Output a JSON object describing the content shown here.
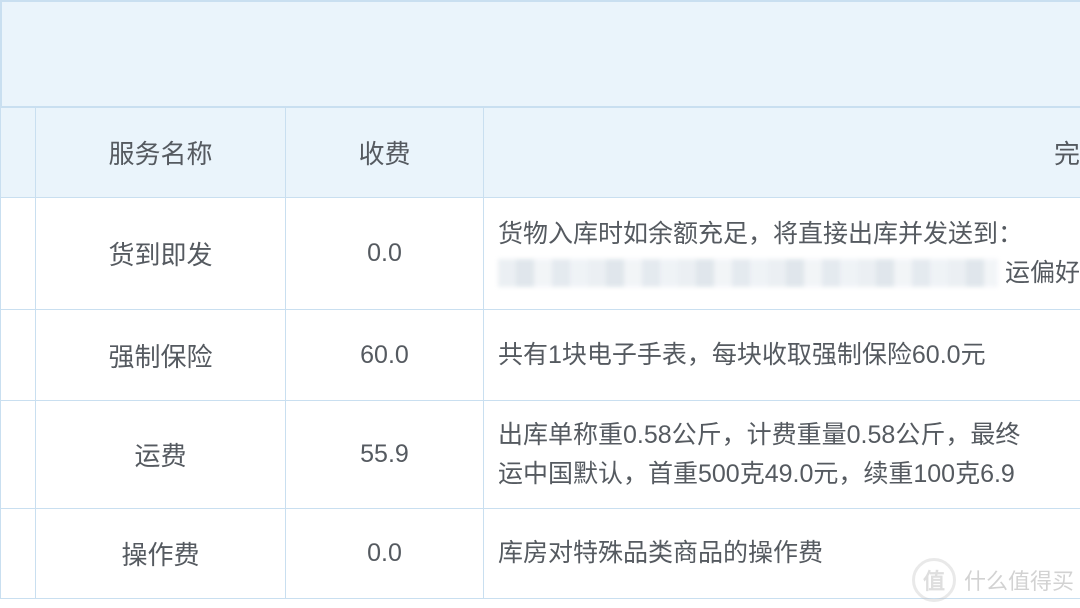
{
  "table": {
    "headers": {
      "service_name": "服务名称",
      "fee": "收费",
      "desc_partial": "完"
    },
    "rows": [
      {
        "name": "货到即发",
        "fee": "0.0",
        "desc_line1": "货物入库时如余额充足，将直接出库并发送到：",
        "desc_tail": "运偏好为转运"
      },
      {
        "name": "强制保险",
        "fee": "60.0",
        "desc": "共有1块电子手表，每块收取强制保险60.0元"
      },
      {
        "name": "运费",
        "fee": "55.9",
        "desc_line1": "出库单称重0.58公斤，计费重量0.58公斤，最终",
        "desc_line2": "运中国默认，首重500克49.0元，续重100克6.9"
      },
      {
        "name": "操作费",
        "fee": "0.0",
        "desc": "库房对特殊品类商品的操作费"
      }
    ]
  },
  "watermark": {
    "badge": "值",
    "text": "什么值得买"
  },
  "colors": {
    "header_bg": "#eaf4fb",
    "border": "#c9dff0",
    "text": "#555a60",
    "background": "#ffffff"
  }
}
